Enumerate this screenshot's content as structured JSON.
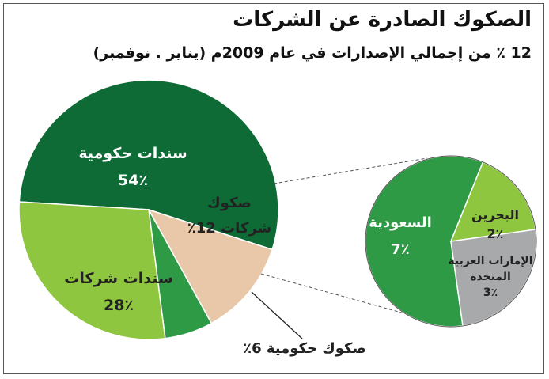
{
  "title": "الصكوك الصادرة عن الشركات",
  "subtitle": "12 ٪ من إجمالي الإصدارات في عام 2009م (يناير . نوفمبر)",
  "chart_data": [
    {
      "type": "pie",
      "categories": [
        "سندات حكومية",
        "صكوك شركات",
        "صكوك حكومية",
        "سندات شركات"
      ],
      "values": [
        54,
        12,
        6,
        28
      ],
      "labels": [
        [
          "سندات حكومية",
          "54٪"
        ],
        [
          "صكوك",
          "شركات 12٪"
        ],
        [
          "صكوك حكومية 6٪"
        ],
        [
          "سندات شركات",
          "28٪"
        ]
      ],
      "colors": [
        "#0e6b36",
        "#e8c8a8",
        "#2f9a45",
        "#8fc63f"
      ]
    },
    {
      "type": "pie",
      "categories": [
        "السعودية",
        "البحرين",
        "الإمارات العربية المتحدة"
      ],
      "values": [
        7,
        2,
        3
      ],
      "labels": [
        [
          "السعودية",
          "7٪"
        ],
        [
          "البحرين",
          "2٪"
        ],
        [
          "الإمارات العربية",
          "المتحدة",
          "3٪"
        ]
      ],
      "colors": [
        "#2f9a45",
        "#8fc63f",
        "#a7a9ab"
      ]
    }
  ]
}
